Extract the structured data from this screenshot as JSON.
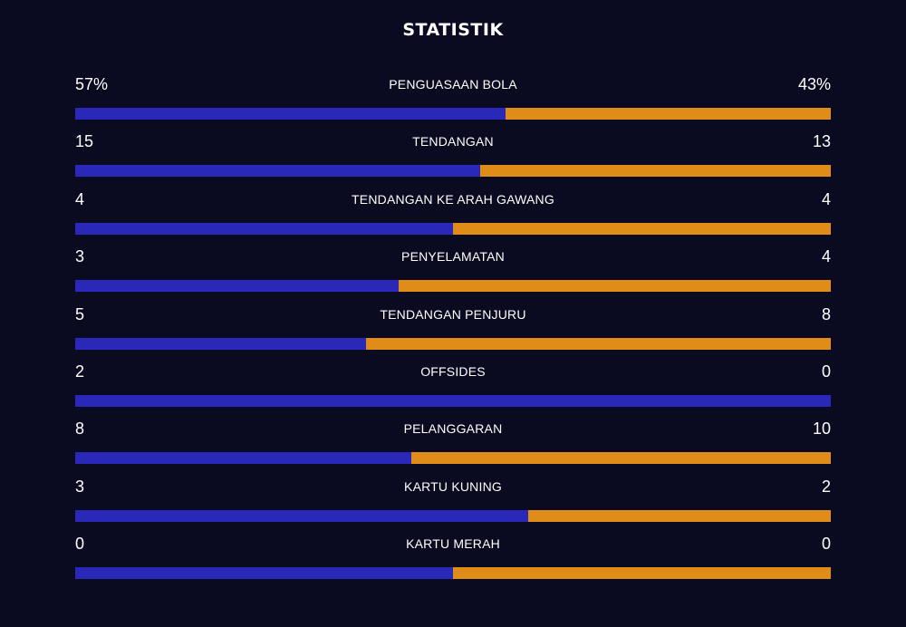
{
  "title": "STATISTIK",
  "colors": {
    "background": "#0a0a21",
    "home": "#2a28b8",
    "away": "#e08c18"
  },
  "stats": [
    {
      "label": "PENGUASAAN BOLA",
      "home": "57%",
      "away": "43%",
      "home_value": 57,
      "away_value": 43
    },
    {
      "label": "TENDANGAN",
      "home": "15",
      "away": "13",
      "home_value": 15,
      "away_value": 13
    },
    {
      "label": "TENDANGAN KE ARAH GAWANG",
      "home": "4",
      "away": "4",
      "home_value": 4,
      "away_value": 4
    },
    {
      "label": "PENYELAMATAN",
      "home": "3",
      "away": "4",
      "home_value": 3,
      "away_value": 4
    },
    {
      "label": "TENDANGAN PENJURU",
      "home": "5",
      "away": "8",
      "home_value": 5,
      "away_value": 8
    },
    {
      "label": "OFFSIDES",
      "home": "2",
      "away": "0",
      "home_value": 2,
      "away_value": 0
    },
    {
      "label": "PELANGGARAN",
      "home": "8",
      "away": "10",
      "home_value": 8,
      "away_value": 10
    },
    {
      "label": "KARTU KUNING",
      "home": "3",
      "away": "2",
      "home_value": 3,
      "away_value": 2
    },
    {
      "label": "KARTU MERAH",
      "home": "0",
      "away": "0",
      "home_value": 0,
      "away_value": 0
    }
  ]
}
